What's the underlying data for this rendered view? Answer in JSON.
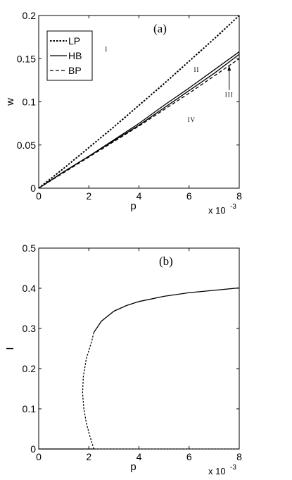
{
  "chart_data": [
    {
      "panel_label": "(a)",
      "type": "line",
      "xlabel": "p",
      "ylabel": "w",
      "xlim": [
        0,
        0.008
      ],
      "ylim": [
        0,
        0.2
      ],
      "x_tick_labels": [
        "0",
        "2",
        "4",
        "6",
        "8"
      ],
      "x_tick_values": [
        0,
        0.002,
        0.004,
        0.006,
        0.008
      ],
      "y_tick_labels": [
        "0",
        "0.05",
        "0.1",
        "0.15",
        "0.2"
      ],
      "y_tick_values": [
        0,
        0.05,
        0.1,
        0.15,
        0.2
      ],
      "x_multiplier": {
        "base": "x 10",
        "exponent": "-3"
      },
      "legend": {
        "position": "top-left",
        "entries": [
          {
            "name": "LP",
            "style": "dotted"
          },
          {
            "name": "HB",
            "style": "solid"
          },
          {
            "name": "BP",
            "style": "dashed"
          }
        ]
      },
      "series": [
        {
          "name": "LP",
          "style": "dotted",
          "x": [
            0,
            0.001,
            0.002,
            0.003,
            0.004,
            0.005,
            0.006,
            0.007,
            0.008
          ],
          "y": [
            0,
            0.023,
            0.047,
            0.071,
            0.096,
            0.121,
            0.147,
            0.173,
            0.2
          ]
        },
        {
          "name": "HB",
          "style": "solid",
          "x": [
            0,
            0.001,
            0.002,
            0.003,
            0.004,
            0.005,
            0.006,
            0.007,
            0.008
          ],
          "y": [
            0,
            0.019,
            0.037,
            0.056,
            0.075,
            0.096,
            0.116,
            0.137,
            0.158
          ]
        },
        {
          "name": "HB",
          "style": "solid",
          "x": [
            0,
            0.001,
            0.002,
            0.003,
            0.004,
            0.005,
            0.006,
            0.007,
            0.008
          ],
          "y": [
            0,
            0.019,
            0.037,
            0.055,
            0.073,
            0.093,
            0.113,
            0.133,
            0.155
          ]
        },
        {
          "name": "BP",
          "style": "dashed",
          "x": [
            0,
            0.001,
            0.002,
            0.003,
            0.004,
            0.005,
            0.006,
            0.007,
            0.008
          ],
          "y": [
            0,
            0.018,
            0.036,
            0.054,
            0.072,
            0.091,
            0.11,
            0.13,
            0.15
          ]
        }
      ],
      "annotations": [
        {
          "text": "I",
          "x": 0.0027,
          "y": 0.161
        },
        {
          "text": "II",
          "x": 0.0063,
          "y": 0.137
        },
        {
          "text": "III",
          "x": 0.0076,
          "y": 0.108
        },
        {
          "text": "IV",
          "x": 0.0061,
          "y": 0.079
        }
      ]
    },
    {
      "panel_label": "(b)",
      "type": "line",
      "xlabel": "p",
      "ylabel": "I",
      "xlim": [
        0,
        0.008
      ],
      "ylim": [
        0,
        0.5
      ],
      "x_tick_labels": [
        "0",
        "2",
        "4",
        "6",
        "8"
      ],
      "x_tick_values": [
        0,
        0.002,
        0.004,
        0.006,
        0.008
      ],
      "y_tick_labels": [
        "0",
        "0.1",
        "0.2",
        "0.3",
        "0.4",
        "0.5"
      ],
      "y_tick_values": [
        0,
        0.1,
        0.2,
        0.3,
        0.4,
        0.5
      ],
      "x_multiplier": {
        "base": "x 10",
        "exponent": "-3"
      },
      "series": [
        {
          "style": "solid",
          "x": [
            0,
            0.0011,
            0.0022
          ],
          "y": [
            0,
            0,
            0
          ]
        },
        {
          "style": "dotted",
          "x": [
            0.0022,
            0.003,
            0.004,
            0.005,
            0.006,
            0.007,
            0.008
          ],
          "y": [
            0,
            0,
            0,
            0,
            0,
            0,
            0
          ]
        },
        {
          "style": "dotted",
          "x": [
            0.0022,
            0.00205,
            0.0019,
            0.0018,
            0.00175,
            0.00178,
            0.0019,
            0.0021,
            0.0022
          ],
          "y": [
            0,
            0.03,
            0.065,
            0.1,
            0.14,
            0.18,
            0.225,
            0.265,
            0.29
          ]
        },
        {
          "style": "solid",
          "x": [
            0.0022,
            0.0025,
            0.003,
            0.0035,
            0.004,
            0.005,
            0.006,
            0.007,
            0.008
          ],
          "y": [
            0.29,
            0.318,
            0.343,
            0.357,
            0.367,
            0.38,
            0.389,
            0.395,
            0.401
          ]
        }
      ]
    }
  ]
}
